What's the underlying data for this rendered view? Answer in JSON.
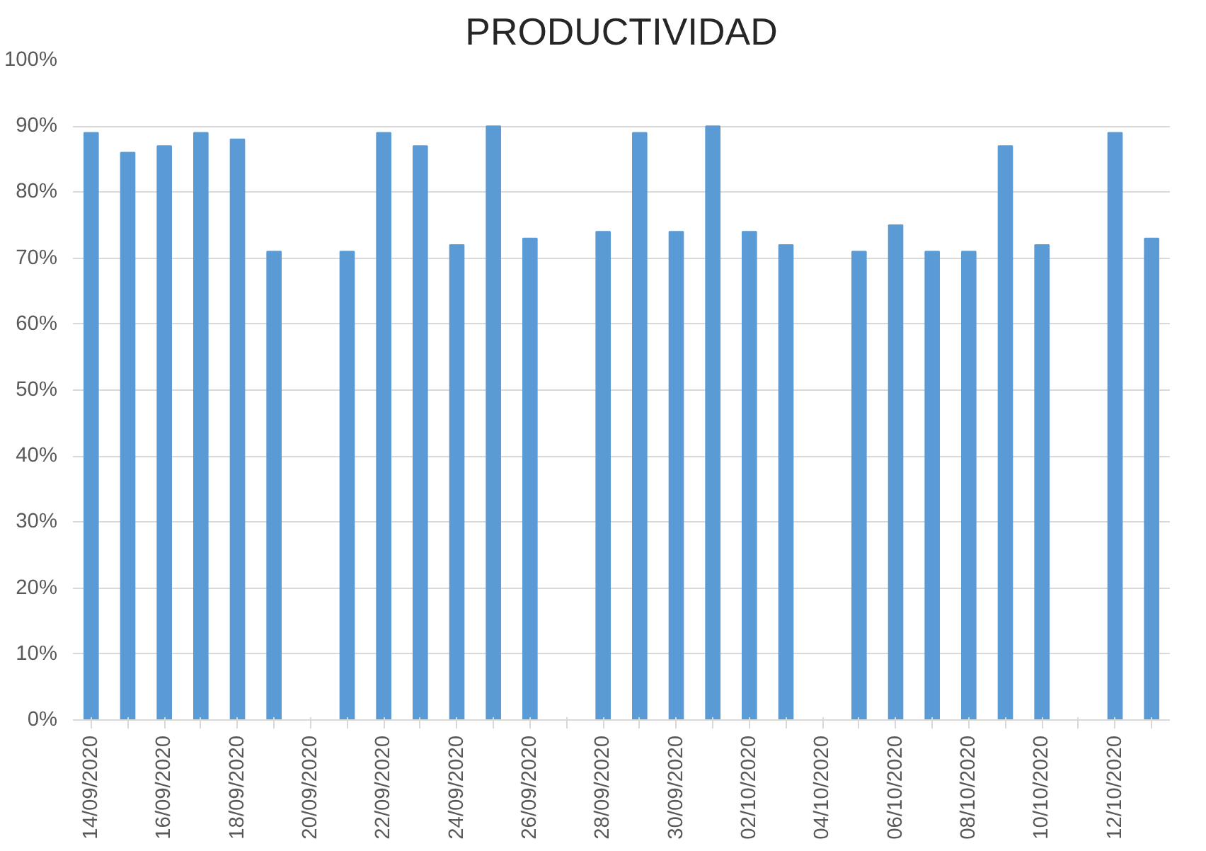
{
  "chart_data": {
    "type": "bar",
    "title": "PRODUCTIVIDAD",
    "categories": [
      "14/09/2020",
      null,
      "16/09/2020",
      null,
      "18/09/2020",
      null,
      "20/09/2020",
      null,
      "22/09/2020",
      null,
      "24/09/2020",
      null,
      "26/09/2020",
      null,
      "28/09/2020",
      null,
      "30/09/2020",
      null,
      "02/10/2020",
      null,
      "04/10/2020",
      null,
      "06/10/2020",
      null,
      "08/10/2020",
      null,
      "10/10/2020",
      null,
      "12/10/2020",
      null
    ],
    "values": [
      0.89,
      0.86,
      0.87,
      0.89,
      0.88,
      0.71,
      null,
      0.71,
      0.89,
      0.87,
      0.72,
      0.9,
      0.73,
      null,
      0.74,
      0.89,
      0.74,
      0.9,
      0.74,
      0.72,
      null,
      0.71,
      0.75,
      0.71,
      0.71,
      0.87,
      0.72,
      null,
      0.89,
      0.73
    ],
    "color": "#5b9bd5",
    "ylim": [
      0,
      1
    ],
    "yticks": [
      {
        "value": 0,
        "label": "0%"
      },
      {
        "value": 0.1,
        "label": "10%"
      },
      {
        "value": 0.2,
        "label": "20%"
      },
      {
        "value": 0.3,
        "label": "30%"
      },
      {
        "value": 0.4,
        "label": "40%"
      },
      {
        "value": 0.5,
        "label": "50%"
      },
      {
        "value": 0.6,
        "label": "60%"
      },
      {
        "value": 0.7,
        "label": "70%"
      },
      {
        "value": 0.8,
        "label": "80%"
      },
      {
        "value": 0.9,
        "label": "90%"
      },
      {
        "value": 1,
        "label": "100%"
      }
    ],
    "grid": "y"
  }
}
